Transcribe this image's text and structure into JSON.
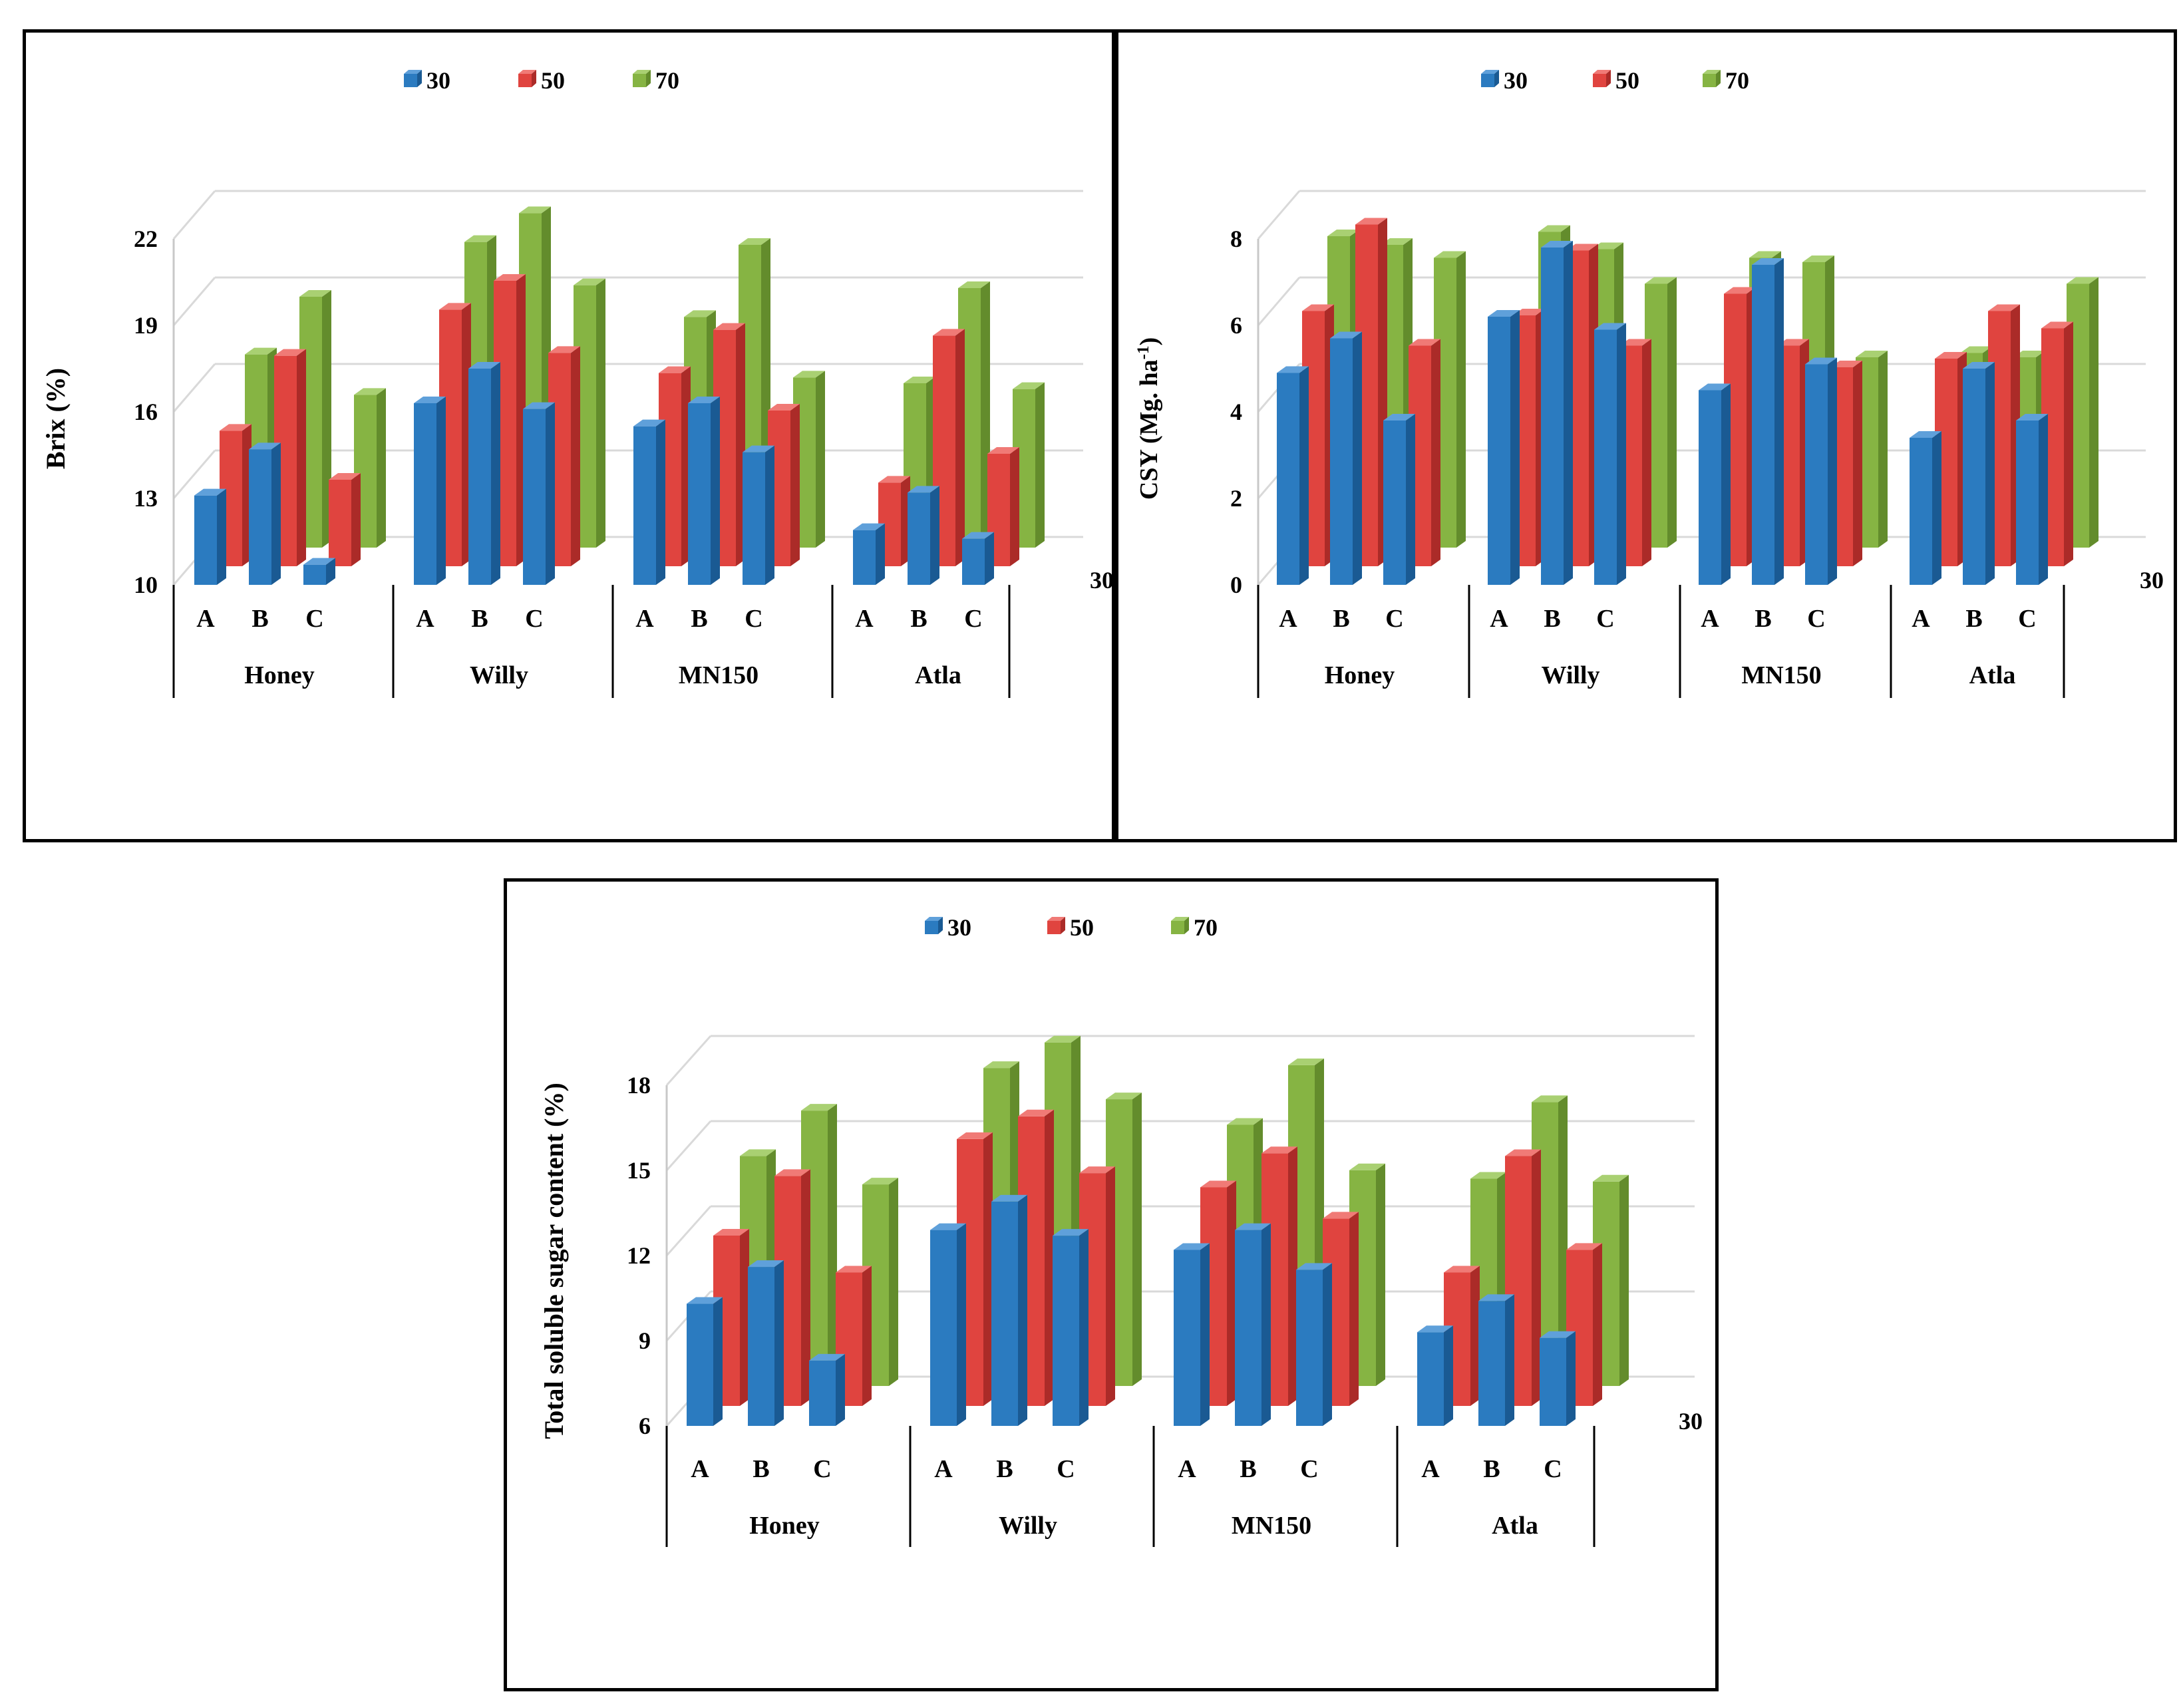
{
  "colors": {
    "s30": {
      "front": "#2b7bc0",
      "side": "#1a5a93",
      "top": "#5fa0da"
    },
    "s50": {
      "front": "#e0443f",
      "side": "#ab2b28",
      "top": "#f07a76"
    },
    "s70": {
      "front": "#86b443",
      "side": "#638c2c",
      "top": "#a9d072"
    }
  },
  "chart_data": [
    {
      "id": "brix",
      "type": "bar",
      "subtype": "3d-clustered-column",
      "ylabel": "Brix (%)",
      "ylabel_sup": "",
      "ylabel_tail": "",
      "ylim": [
        10,
        22
      ],
      "yticks": [
        "10",
        "13",
        "16",
        "19",
        "22"
      ],
      "depth_label": "30",
      "groups": [
        "Honey",
        "Willy",
        "MN150",
        "Atla"
      ],
      "subcategories": [
        "A",
        "B",
        "C"
      ],
      "legend": [
        "30",
        "50",
        "70"
      ],
      "series": [
        {
          "name": "30",
          "values": [
            13.1,
            14.7,
            10.7,
            16.3,
            17.5,
            16.1,
            15.5,
            16.3,
            14.6,
            11.9,
            13.2,
            11.6
          ]
        },
        {
          "name": "50",
          "values": [
            14.7,
            17.3,
            13.0,
            18.9,
            19.9,
            17.4,
            16.7,
            18.2,
            15.4,
            12.9,
            18.0,
            13.9
          ]
        },
        {
          "name": "70",
          "values": [
            16.7,
            18.7,
            15.3,
            20.6,
            21.6,
            19.1,
            18.0,
            20.5,
            15.9,
            15.7,
            19.0,
            15.5
          ]
        }
      ]
    },
    {
      "id": "csy",
      "type": "bar",
      "subtype": "3d-clustered-column",
      "ylabel": "CSY  (Mg. ha",
      "ylabel_sup": "-1",
      "ylabel_tail": ")",
      "ylim": [
        0,
        8
      ],
      "yticks": [
        "0",
        "2",
        "4",
        "6",
        "8"
      ],
      "depth_label": "30",
      "groups": [
        "Honey",
        "Willy",
        "MN150",
        "Atla"
      ],
      "subcategories": [
        "A",
        "B",
        "C"
      ],
      "legend": [
        "30",
        "50",
        "70"
      ],
      "series": [
        {
          "name": "30",
          "values": [
            4.9,
            5.7,
            3.8,
            6.2,
            7.8,
            5.9,
            4.5,
            7.4,
            5.1,
            3.4,
            5.0,
            3.8
          ]
        },
        {
          "name": "50",
          "values": [
            5.9,
            7.9,
            5.1,
            5.8,
            7.3,
            5.1,
            6.3,
            5.1,
            4.6,
            4.8,
            5.9,
            5.5
          ]
        },
        {
          "name": "70",
          "values": [
            7.2,
            7.0,
            6.7,
            7.3,
            6.9,
            6.1,
            6.7,
            6.6,
            4.4,
            4.5,
            4.4,
            6.1
          ]
        }
      ]
    },
    {
      "id": "tss",
      "type": "bar",
      "subtype": "3d-clustered-column",
      "ylabel": "Total soluble sugar content (%)",
      "ylabel_sup": "",
      "ylabel_tail": "",
      "ylim": [
        6,
        18
      ],
      "yticks": [
        "6",
        "9",
        "12",
        "15",
        "18"
      ],
      "depth_label": "30",
      "groups": [
        "Honey",
        "Willy",
        "MN150",
        "Atla"
      ],
      "subcategories": [
        "A",
        "B",
        "C"
      ],
      "legend": [
        "30",
        "50",
        "70"
      ],
      "series": [
        {
          "name": "30",
          "values": [
            10.3,
            11.6,
            8.3,
            12.9,
            13.9,
            12.7,
            12.2,
            12.9,
            11.5,
            9.3,
            10.4,
            9.1
          ]
        },
        {
          "name": "50",
          "values": [
            12.0,
            14.1,
            10.7,
            15.4,
            16.2,
            14.2,
            13.7,
            14.9,
            12.6,
            10.7,
            14.8,
            11.5
          ]
        },
        {
          "name": "70",
          "values": [
            14.1,
            15.7,
            13.1,
            17.2,
            18.1,
            16.1,
            15.2,
            17.3,
            13.6,
            13.3,
            16.0,
            13.2
          ]
        }
      ]
    }
  ]
}
